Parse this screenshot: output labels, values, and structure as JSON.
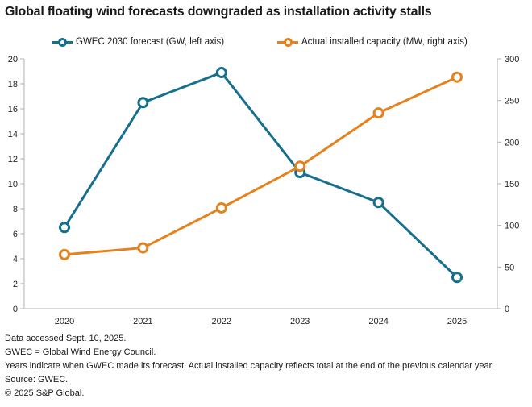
{
  "title": "Global floating wind forecasts downgraded as installation activity stalls",
  "colors": {
    "forecast": "#16708d",
    "actual": "#e6821e",
    "axis": "#b3b3b3",
    "text": "#1a1a1a"
  },
  "legend": {
    "forecast_label": "GWEC 2030 forecast (GW, left axis)",
    "actual_label": "Actual installed capacity (MW, right axis)"
  },
  "chart_data": {
    "type": "line",
    "title": "Global floating wind forecasts downgraded as installation activity stalls",
    "categories": [
      "2020",
      "2021",
      "2022",
      "2023",
      "2024",
      "2025"
    ],
    "series": [
      {
        "name": "GWEC 2030 forecast (GW, left axis)",
        "axis": "left",
        "color_key": "forecast",
        "values": [
          6.5,
          16.5,
          18.9,
          10.9,
          8.5,
          2.5
        ]
      },
      {
        "name": "Actual installed capacity (MW, right axis)",
        "axis": "right",
        "color_key": "actual",
        "values": [
          65,
          73,
          121,
          171,
          235,
          278
        ]
      }
    ],
    "left_axis": {
      "min": 0,
      "max": 20,
      "ticks": [
        0,
        2,
        4,
        6,
        8,
        10,
        12,
        14,
        16,
        18,
        20
      ]
    },
    "right_axis": {
      "min": 0,
      "max": 300,
      "ticks": [
        0,
        50,
        100,
        150,
        200,
        250,
        300
      ]
    },
    "grid": false,
    "legend_position": "top"
  },
  "footnotes": {
    "line1": "Data accessed Sept. 10, 2025.",
    "line2": "GWEC = Global Wind Energy Council.",
    "line3": "Years indicate when GWEC made its forecast. Actual installed capacity reflects total at the end of the previous calendar year.",
    "line4": "Source: GWEC.",
    "line5": "© 2025 S&P Global."
  }
}
